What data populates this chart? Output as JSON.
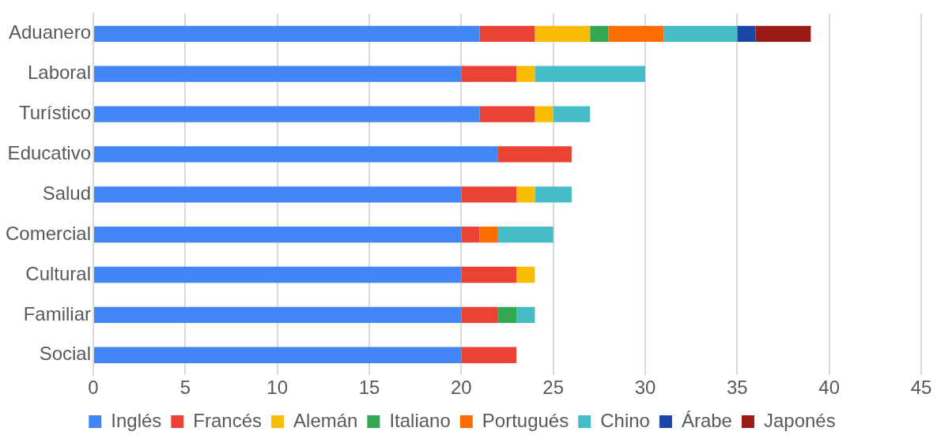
{
  "chart_data": {
    "type": "bar",
    "orientation": "horizontal",
    "stacked": true,
    "categories": [
      "Aduanero",
      "Laboral",
      "Turístico",
      "Educativo",
      "Salud",
      "Comercial",
      "Cultural",
      "Familiar",
      "Social"
    ],
    "series": [
      {
        "name": "Inglés",
        "color": "#4285f4",
        "values": [
          21,
          20,
          21,
          22,
          20,
          20,
          20,
          20,
          20
        ]
      },
      {
        "name": "Francés",
        "color": "#ea4335",
        "values": [
          3,
          3,
          3,
          4,
          3,
          1,
          3,
          2,
          3
        ]
      },
      {
        "name": "Alemán",
        "color": "#fbbc04",
        "values": [
          3,
          1,
          1,
          null,
          1,
          null,
          1,
          null,
          null
        ]
      },
      {
        "name": "Italiano",
        "color": "#34a853",
        "values": [
          1,
          null,
          null,
          null,
          null,
          null,
          null,
          1,
          null
        ]
      },
      {
        "name": "Portugués",
        "color": "#ff6d01",
        "values": [
          3,
          null,
          null,
          null,
          null,
          1,
          null,
          null,
          null
        ]
      },
      {
        "name": "Chino",
        "color": "#46bdc6",
        "values": [
          4,
          6,
          2,
          null,
          2,
          3,
          null,
          1,
          null
        ]
      },
      {
        "name": "Árabe",
        "color": "#1a46a8",
        "values": [
          1,
          null,
          null,
          null,
          null,
          null,
          null,
          null,
          null
        ]
      },
      {
        "name": "Japonés",
        "color": "#9b1c14",
        "values": [
          3,
          null,
          null,
          null,
          null,
          null,
          null,
          null,
          null
        ]
      }
    ],
    "xlim": [
      0,
      45
    ],
    "xticks": [
      0,
      5,
      10,
      15,
      20,
      25,
      30,
      35,
      40,
      45
    ],
    "grid": "x",
    "legend": "bottom"
  }
}
